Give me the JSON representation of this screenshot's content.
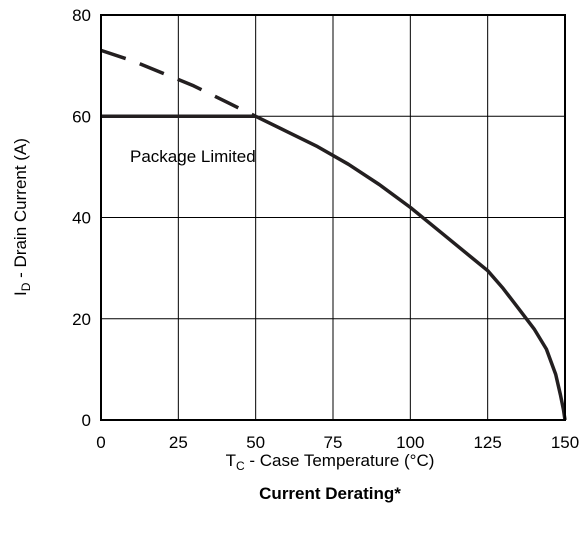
{
  "chart_data": {
    "type": "line",
    "title": "Current Derating*",
    "xlabel": {
      "main": "T",
      "sub": "C",
      "rest": " - Case Temperature (°C)"
    },
    "ylabel": {
      "main": "I",
      "sub": "D",
      "rest": " - Drain Current (A)"
    },
    "xlim": [
      0,
      150
    ],
    "ylim": [
      0,
      80
    ],
    "xticks": [
      0,
      25,
      50,
      75,
      100,
      125,
      150
    ],
    "yticks": [
      0,
      20,
      40,
      60,
      80
    ],
    "grid": true,
    "annotation": "Package Limited",
    "series": [
      {
        "style": "dashed",
        "color": "#231f20",
        "points": [
          [
            0,
            73
          ],
          [
            10,
            71
          ],
          [
            20,
            68.5
          ],
          [
            30,
            66
          ],
          [
            40,
            63
          ],
          [
            50,
            60
          ]
        ]
      },
      {
        "style": "solid",
        "color": "#231f20",
        "points": [
          [
            0,
            60
          ],
          [
            50,
            60
          ]
        ]
      },
      {
        "style": "solid",
        "color": "#231f20",
        "points": [
          [
            50,
            60
          ],
          [
            60,
            57
          ],
          [
            70,
            54
          ],
          [
            80,
            50.5
          ],
          [
            90,
            46.5
          ],
          [
            100,
            42
          ],
          [
            110,
            37
          ],
          [
            120,
            32
          ],
          [
            125,
            29.5
          ],
          [
            130,
            26
          ],
          [
            135,
            22
          ],
          [
            140,
            18
          ],
          [
            144,
            14
          ],
          [
            147,
            9
          ],
          [
            148.5,
            5
          ],
          [
            149.5,
            2
          ],
          [
            150,
            0
          ]
        ]
      }
    ]
  }
}
